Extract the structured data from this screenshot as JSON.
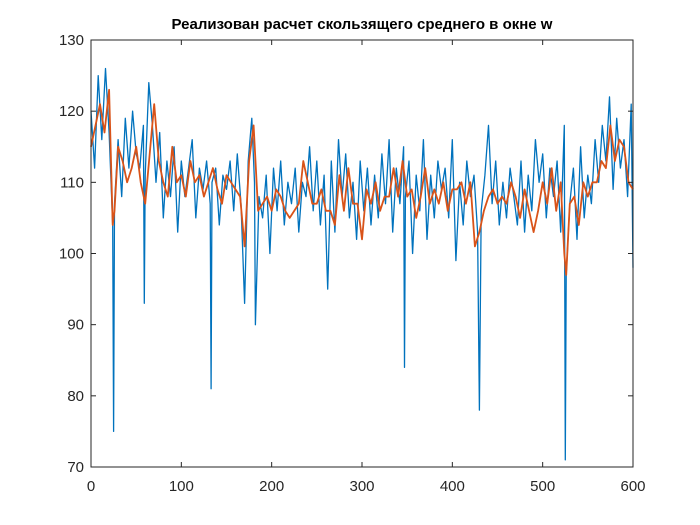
{
  "chart_data": {
    "type": "line",
    "title": "Реализован расчет скользящего среднего в окне w",
    "xlabel": "",
    "ylabel": "",
    "xlim": [
      0,
      600
    ],
    "ylim": [
      70,
      130
    ],
    "xticks": [
      0,
      100,
      200,
      300,
      400,
      500,
      600
    ],
    "yticks": [
      70,
      80,
      90,
      100,
      110,
      120,
      130
    ],
    "grid": false,
    "legend": "none",
    "box": true,
    "series": [
      {
        "color": "#0072BD",
        "x": [
          0,
          4,
          8,
          12,
          16,
          20,
          24,
          25,
          26,
          30,
          34,
          38,
          42,
          46,
          50,
          54,
          58,
          59,
          60,
          64,
          68,
          72,
          76,
          80,
          84,
          88,
          92,
          96,
          100,
          104,
          108,
          112,
          116,
          120,
          124,
          128,
          132,
          133,
          134,
          138,
          142,
          146,
          150,
          154,
          158,
          162,
          166,
          170,
          174,
          178,
          181,
          182,
          186,
          190,
          194,
          198,
          202,
          206,
          210,
          214,
          218,
          222,
          226,
          230,
          234,
          238,
          242,
          246,
          250,
          254,
          258,
          262,
          266,
          270,
          274,
          278,
          282,
          286,
          290,
          294,
          298,
          302,
          306,
          310,
          314,
          318,
          322,
          326,
          330,
          334,
          338,
          342,
          346,
          347,
          348,
          352,
          356,
          360,
          364,
          368,
          372,
          376,
          380,
          384,
          388,
          392,
          396,
          400,
          404,
          408,
          412,
          416,
          420,
          424,
          428,
          430,
          432,
          436,
          440,
          444,
          448,
          452,
          456,
          460,
          464,
          468,
          472,
          476,
          480,
          484,
          488,
          492,
          496,
          500,
          504,
          508,
          512,
          516,
          520,
          524,
          525,
          526,
          530,
          534,
          538,
          542,
          546,
          550,
          554,
          558,
          562,
          566,
          570,
          574,
          578,
          582,
          586,
          590,
          594,
          598,
          600
        ],
        "values": [
          120,
          112,
          125,
          116,
          126,
          117,
          104,
          75,
          107,
          116,
          108,
          119,
          112,
          120,
          114,
          112,
          118,
          93,
          111,
          124,
          118,
          110,
          117,
          105,
          113,
          108,
          115,
          103,
          113,
          108,
          112,
          116,
          105,
          112,
          109,
          113,
          107,
          81,
          110,
          112,
          104,
          111,
          109,
          113,
          106,
          114,
          107,
          93,
          113,
          119,
          110,
          90,
          108,
          105,
          111,
          100,
          112,
          106,
          113,
          104,
          110,
          107,
          112,
          103,
          110,
          108,
          115,
          106,
          113,
          104,
          111,
          95,
          113,
          103,
          116,
          108,
          114,
          105,
          110,
          102,
          113,
          106,
          112,
          104,
          111,
          105,
          114,
          107,
          116,
          103,
          112,
          107,
          115,
          84,
          108,
          113,
          100,
          111,
          106,
          116,
          102,
          111,
          105,
          113,
          109,
          112,
          105,
          116,
          99,
          110,
          104,
          113,
          108,
          111,
          103,
          78,
          106,
          111,
          118,
          107,
          113,
          104,
          110,
          105,
          112,
          108,
          104,
          113,
          103,
          111,
          106,
          116,
          110,
          114,
          105,
          112,
          108,
          113,
          103,
          118,
          71,
          97,
          107,
          112,
          102,
          115,
          105,
          111,
          107,
          116,
          110,
          118,
          113,
          122,
          109,
          119,
          112,
          116,
          108,
          121,
          98
        ]
      },
      {
        "color": "#D95319",
        "x": [
          0,
          5,
          10,
          15,
          20,
          24,
          26,
          30,
          35,
          40,
          45,
          50,
          55,
          60,
          65,
          70,
          75,
          80,
          85,
          90,
          95,
          100,
          105,
          110,
          115,
          120,
          125,
          130,
          135,
          140,
          145,
          150,
          155,
          160,
          165,
          170,
          175,
          180,
          185,
          190,
          195,
          200,
          205,
          210,
          215,
          220,
          225,
          230,
          235,
          240,
          245,
          250,
          255,
          260,
          265,
          270,
          275,
          280,
          285,
          290,
          295,
          300,
          305,
          310,
          315,
          320,
          325,
          330,
          335,
          340,
          345,
          350,
          355,
          360,
          365,
          370,
          375,
          380,
          385,
          390,
          395,
          400,
          405,
          410,
          415,
          420,
          425,
          430,
          435,
          440,
          445,
          450,
          455,
          460,
          465,
          470,
          475,
          480,
          485,
          490,
          495,
          500,
          505,
          510,
          515,
          520,
          524,
          526,
          530,
          535,
          540,
          545,
          550,
          555,
          560,
          565,
          570,
          575,
          580,
          585,
          590,
          595,
          600
        ],
        "values": [
          115,
          118,
          121,
          117,
          123,
          104,
          106,
          115,
          113,
          110,
          112,
          115,
          110,
          107,
          114,
          121,
          113,
          110,
          108,
          115,
          110,
          111,
          108,
          113,
          110,
          111,
          108,
          110,
          112,
          109,
          107,
          111,
          110,
          109,
          108,
          101,
          113,
          118,
          106,
          107,
          108,
          106,
          109,
          108,
          106,
          105,
          106,
          107,
          113,
          110,
          107,
          107,
          109,
          106,
          106,
          104,
          111,
          106,
          112,
          107,
          107,
          102,
          109,
          107,
          110,
          106,
          108,
          108,
          112,
          108,
          113,
          108,
          109,
          105,
          108,
          112,
          107,
          109,
          107,
          110,
          106,
          109,
          109,
          110,
          107,
          110,
          101,
          103,
          106,
          108,
          109,
          107,
          108,
          107,
          110,
          108,
          105,
          109,
          106,
          103,
          106,
          110,
          107,
          112,
          106,
          110,
          100,
          97,
          107,
          108,
          104,
          110,
          108,
          110,
          110,
          113,
          112,
          118,
          113,
          116,
          115,
          110,
          109
        ]
      }
    ]
  }
}
